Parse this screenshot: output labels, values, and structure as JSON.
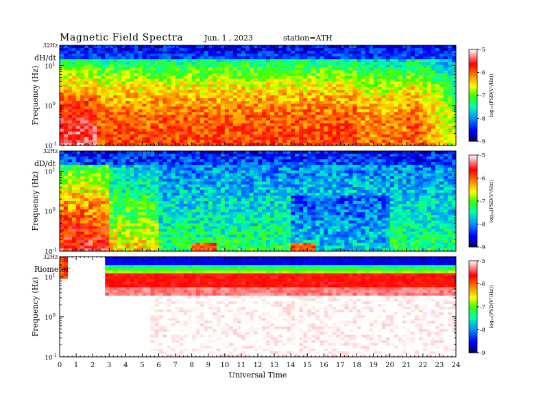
{
  "header": {
    "title": "Magnetic  Field  Spectra",
    "date": "Jun. 1 , 2023",
    "station": "station=ATH"
  },
  "chart_data": [
    {
      "type": "heatmap",
      "panel_label": "dH/dt",
      "top_label": "32Hz",
      "ylabel": "Frequency (Hz)",
      "yscale": "log",
      "ylim": [
        0.1,
        32
      ],
      "y_tick_labels": [
        "10⁻¹",
        "10⁰",
        "10¹"
      ],
      "xlim": [
        0,
        24
      ],
      "colorbar": {
        "label": "log₁₀(PSD(V²/Hz))",
        "range": [
          -9,
          -5
        ],
        "ticks": [
          "-5",
          "-6",
          "-7",
          "-8",
          "-9"
        ]
      },
      "description_levels": {
        "low_freq_0_6h": "high",
        "mid_day": "moderate-high",
        "late_day": "declining"
      }
    },
    {
      "type": "heatmap",
      "panel_label": "dD/dt",
      "top_label": "32Hz",
      "ylabel": "Frequency (Hz)",
      "yscale": "log",
      "ylim": [
        0.1,
        32
      ],
      "y_tick_labels": [
        "10⁻¹",
        "10⁰",
        "10¹"
      ],
      "xlim": [
        0,
        24
      ],
      "colorbar": {
        "label": "log₁₀(PSD(V²/Hz))",
        "range": [
          -9,
          -5
        ],
        "ticks": [
          "-5",
          "-6",
          "-7",
          "-8",
          "-9"
        ]
      }
    },
    {
      "type": "heatmap",
      "panel_label": "Riometer",
      "top_label": "32Hz",
      "ylabel": "Frequency (Hz)",
      "yscale": "log",
      "ylim": [
        0.1,
        32
      ],
      "y_tick_labels": [
        "10⁻¹",
        "10⁰",
        "10¹"
      ],
      "xlim": [
        0,
        24
      ],
      "xlabel": "Universal Time",
      "x_tick_labels": [
        "0",
        "1",
        "2",
        "3",
        "4",
        "5",
        "6",
        "7",
        "8",
        "9",
        "10",
        "11",
        "12",
        "13",
        "14",
        "15",
        "16",
        "17",
        "18",
        "19",
        "20",
        "21",
        "22",
        "23",
        "24"
      ],
      "colorbar": {
        "label": "log₁₀(PSD(V²/Hz))",
        "range": [
          -9,
          -5
        ],
        "ticks": [
          "-5",
          "-6",
          "-7",
          "-8",
          "-9"
        ]
      }
    }
  ],
  "colors": {
    "scale": [
      "#000080",
      "#0000ff",
      "#00b0ff",
      "#00ff80",
      "#80ff00",
      "#ffff00",
      "#ff8000",
      "#ff0000",
      "#ffffff"
    ]
  }
}
